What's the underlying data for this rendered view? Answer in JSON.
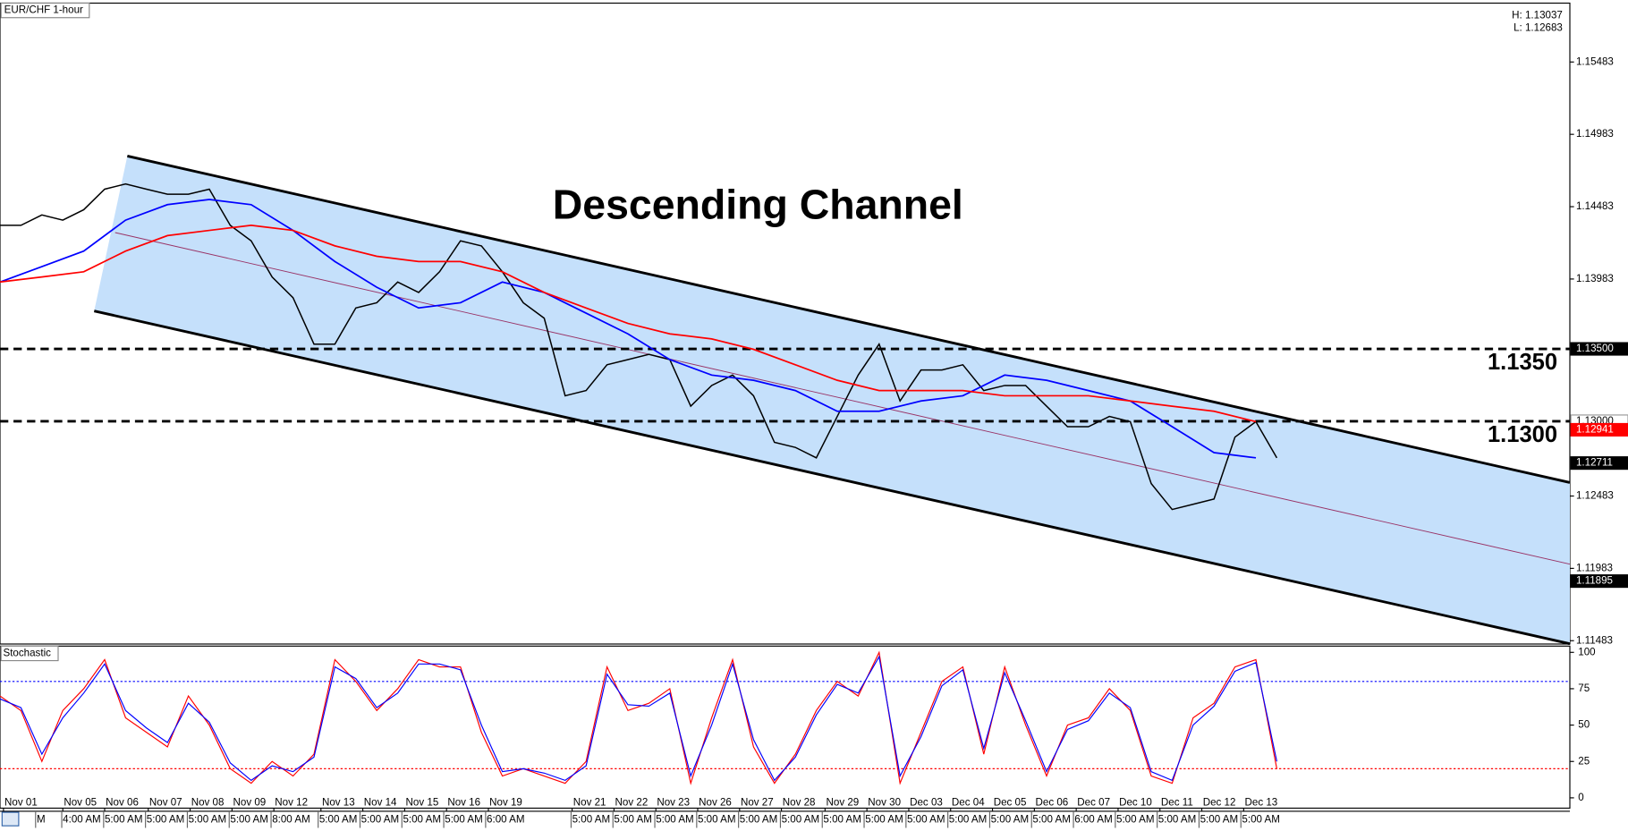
{
  "chart_data": {
    "type": "line",
    "title": "EUR/CHF 1-hour",
    "high_label": "H: 1.13037",
    "low_label": "L: 1.12683",
    "annotation": "Descending Channel",
    "xlim": [
      0,
      900
    ],
    "ylim": [
      1.1146,
      1.1589
    ],
    "yticks": [
      1.15483,
      1.14983,
      1.14483,
      1.13983,
      1.12483,
      1.11983,
      1.11483
    ],
    "xticks": [
      {
        "value": 2,
        "label": "Nov 01"
      },
      {
        "value": 36,
        "label": "Nov 05"
      },
      {
        "value": 60,
        "label": "Nov 06"
      },
      {
        "value": 85,
        "label": "Nov 07"
      },
      {
        "value": 109,
        "label": "Nov 08"
      },
      {
        "value": 133,
        "label": "Nov 09"
      },
      {
        "value": 157,
        "label": "Nov 12"
      },
      {
        "value": 184,
        "label": "Nov 13"
      },
      {
        "value": 208,
        "label": "Nov 14"
      },
      {
        "value": 232,
        "label": "Nov 15"
      },
      {
        "value": 256,
        "label": "Nov 16"
      },
      {
        "value": 280,
        "label": "Nov 19"
      },
      {
        "value": 328,
        "label": "Nov 21"
      },
      {
        "value": 352,
        "label": "Nov 22"
      },
      {
        "value": 376,
        "label": "Nov 23"
      },
      {
        "value": 400,
        "label": "Nov 26"
      },
      {
        "value": 424,
        "label": "Nov 27"
      },
      {
        "value": 448,
        "label": "Nov 28"
      },
      {
        "value": 473,
        "label": "Nov 29"
      },
      {
        "value": 497,
        "label": "Nov 30"
      },
      {
        "value": 521,
        "label": "Dec 03"
      },
      {
        "value": 545,
        "label": "Dec 04"
      },
      {
        "value": 569,
        "label": "Dec 05"
      },
      {
        "value": 593,
        "label": "Dec 06"
      },
      {
        "value": 617,
        "label": "Dec 07"
      },
      {
        "value": 641,
        "label": "Dec 10"
      },
      {
        "value": 665,
        "label": "Dec 11"
      },
      {
        "value": 689,
        "label": "Dec 12"
      },
      {
        "value": 713,
        "label": "Dec 13"
      }
    ],
    "time_ticks": [
      {
        "value": 21,
        "label": "M"
      },
      {
        "value": 36,
        "label": "4:00 AM"
      },
      {
        "value": 60,
        "label": "5:00 AM"
      },
      {
        "value": 84,
        "label": "5:00 AM"
      },
      {
        "value": 108,
        "label": "5:00 AM"
      },
      {
        "value": 132,
        "label": "5:00 AM"
      },
      {
        "value": 156,
        "label": "8:00 AM"
      },
      {
        "value": 183,
        "label": "5:00 AM"
      },
      {
        "value": 207,
        "label": "5:00 AM"
      },
      {
        "value": 231,
        "label": "5:00 AM"
      },
      {
        "value": 255,
        "label": "5:00 AM"
      },
      {
        "value": 279,
        "label": "6:00 AM"
      },
      {
        "value": 328,
        "label": "5:00 AM"
      },
      {
        "value": 352,
        "label": "5:00 AM"
      },
      {
        "value": 376,
        "label": "5:00 AM"
      },
      {
        "value": 400,
        "label": "5:00 AM"
      },
      {
        "value": 424,
        "label": "5:00 AM"
      },
      {
        "value": 448,
        "label": "5:00 AM"
      },
      {
        "value": 472,
        "label": "5:00 AM"
      },
      {
        "value": 496,
        "label": "5:00 AM"
      },
      {
        "value": 520,
        "label": "5:00 AM"
      },
      {
        "value": 544,
        "label": "5:00 AM"
      },
      {
        "value": 568,
        "label": "5:00 AM"
      },
      {
        "value": 592,
        "label": "5:00 AM"
      },
      {
        "value": 616,
        "label": "6:00 AM"
      },
      {
        "value": 640,
        "label": "5:00 AM"
      },
      {
        "value": 664,
        "label": "5:00 AM"
      },
      {
        "value": 688,
        "label": "5:00 AM"
      },
      {
        "value": 712,
        "label": "5:00 AM"
      }
    ],
    "series": [
      {
        "color": "#000000",
        "x": [
          0,
          12,
          24,
          36,
          48,
          60,
          72,
          84,
          96,
          108,
          120,
          132,
          144,
          156,
          168,
          180,
          192,
          204,
          216,
          228,
          240,
          252,
          264,
          276,
          288,
          300,
          312,
          324,
          336,
          348,
          360,
          372,
          384,
          396,
          408,
          420,
          432,
          444,
          456,
          468,
          480,
          492,
          504,
          516,
          528,
          540,
          552,
          564,
          576,
          588,
          600,
          612,
          624,
          636,
          648,
          660,
          672,
          684,
          696,
          708,
          720,
          732
        ],
        "values": [
          1.14354,
          1.14354,
          1.14426,
          1.1439,
          1.14462,
          1.14604,
          1.1464,
          1.14604,
          1.14569,
          1.14569,
          1.14604,
          1.14354,
          1.14247,
          1.13997,
          1.13854,
          1.13533,
          1.13533,
          1.13783,
          1.13819,
          1.13962,
          1.1389,
          1.14033,
          1.14247,
          1.14212,
          1.14033,
          1.13819,
          1.13712,
          1.13176,
          1.13212,
          1.1339,
          1.13426,
          1.13462,
          1.13426,
          1.13104,
          1.13247,
          1.13319,
          1.13176,
          1.12854,
          1.12819,
          1.12747,
          1.13033,
          1.13319,
          1.13533,
          1.1314,
          1.13354,
          1.13354,
          1.1339,
          1.13212,
          1.13247,
          1.13247,
          1.13104,
          1.12962,
          1.12962,
          1.13033,
          1.12997,
          1.12569,
          1.1239,
          1.12426,
          1.12462,
          1.1289,
          1.12997,
          1.12747
        ]
      },
      {
        "color": "#0000ff",
        "x": [
          0,
          24,
          48,
          72,
          96,
          120,
          144,
          168,
          192,
          216,
          240,
          264,
          288,
          312,
          336,
          360,
          384,
          408,
          432,
          456,
          480,
          504,
          528,
          552,
          576,
          600,
          624,
          648,
          672,
          696,
          720
        ],
        "values": [
          1.13962,
          1.14069,
          1.14176,
          1.1439,
          1.14497,
          1.14533,
          1.14497,
          1.14319,
          1.14104,
          1.13926,
          1.13783,
          1.13819,
          1.13962,
          1.1389,
          1.13747,
          1.13604,
          1.13426,
          1.13319,
          1.13283,
          1.13212,
          1.13069,
          1.13069,
          1.1314,
          1.13176,
          1.13319,
          1.13283,
          1.13212,
          1.1314,
          1.12962,
          1.12783,
          1.12747
        ]
      },
      {
        "color": "#ff0000",
        "x": [
          0,
          24,
          48,
          72,
          96,
          120,
          144,
          168,
          192,
          216,
          240,
          264,
          288,
          312,
          336,
          360,
          384,
          408,
          432,
          456,
          480,
          504,
          528,
          552,
          576,
          600,
          624,
          648,
          672,
          696,
          720
        ],
        "values": [
          1.13962,
          1.13997,
          1.14033,
          1.14176,
          1.14283,
          1.14319,
          1.14354,
          1.14319,
          1.14212,
          1.1414,
          1.14104,
          1.14104,
          1.14033,
          1.1389,
          1.13783,
          1.13676,
          1.13604,
          1.13569,
          1.13497,
          1.1339,
          1.13283,
          1.13212,
          1.13212,
          1.13212,
          1.13176,
          1.13176,
          1.13176,
          1.1314,
          1.13104,
          1.13069,
          1.12997
        ]
      }
    ],
    "channel": {
      "upper": {
        "x": [
          73,
          900
        ],
        "values": [
          1.14833,
          1.12576
        ]
      },
      "middle": {
        "x": [
          66,
          900
        ],
        "values": [
          1.14304,
          1.12012
        ]
      },
      "lower": {
        "x": [
          54,
          900
        ],
        "values": [
          1.13762,
          1.11462
        ]
      },
      "fill": "#c5e0fb"
    },
    "levels": [
      {
        "value": 1.135,
        "label": "1.1350"
      },
      {
        "value": 1.13,
        "label": "1.1300"
      }
    ],
    "price_tags": [
      {
        "value": 1.135,
        "label": "1.13500",
        "color": "#000000"
      },
      {
        "value": 1.13,
        "label": "1.13000",
        "color": "#ffffff"
      },
      {
        "value": 1.12941,
        "color": "#ff0000"
      },
      {
        "value": 1.12711,
        "color": "#000000"
      },
      {
        "value": 1.11895,
        "color": "#000000"
      }
    ],
    "stochastic": {
      "title": "Stochastic",
      "ylim": [
        -7.1,
        104.3
      ],
      "yticks": [
        0,
        25,
        50,
        75,
        100
      ],
      "levels": [
        {
          "value": 80,
          "color": "#0000ff"
        },
        {
          "value": 20,
          "color": "#ff0000"
        }
      ],
      "x": [
        0,
        12,
        24,
        36,
        48,
        60,
        72,
        84,
        96,
        108,
        120,
        132,
        144,
        156,
        168,
        180,
        192,
        204,
        216,
        228,
        240,
        252,
        264,
        276,
        288,
        300,
        312,
        324,
        336,
        348,
        360,
        372,
        384,
        396,
        408,
        420,
        432,
        444,
        456,
        468,
        480,
        492,
        504,
        516,
        528,
        540,
        552,
        564,
        576,
        588,
        600,
        612,
        624,
        636,
        648,
        660,
        672,
        684,
        696,
        708,
        720,
        732
      ],
      "series": [
        {
          "color": "#ff0000",
          "values": [
            70,
            60,
            25,
            60,
            75,
            95,
            55,
            45,
            35,
            70,
            50,
            20,
            10,
            25,
            15,
            30,
            95,
            80,
            60,
            75,
            95,
            90,
            90,
            45,
            15,
            20,
            15,
            10,
            25,
            90,
            60,
            65,
            75,
            10,
            55,
            95,
            35,
            10,
            30,
            60,
            80,
            70,
            100,
            10,
            45,
            80,
            90,
            30,
            90,
            50,
            15,
            50,
            55,
            75,
            60,
            15,
            10,
            55,
            65,
            90,
            95,
            20
          ]
        },
        {
          "color": "#0000ff",
          "values": [
            68,
            62,
            30,
            55,
            72,
            92,
            60,
            48,
            38,
            65,
            52,
            24,
            12,
            22,
            18,
            28,
            90,
            82,
            62,
            72,
            92,
            92,
            88,
            50,
            18,
            20,
            17,
            12,
            22,
            85,
            64,
            63,
            72,
            15,
            50,
            92,
            40,
            12,
            28,
            57,
            78,
            72,
            97,
            15,
            42,
            77,
            88,
            34,
            86,
            53,
            18,
            47,
            53,
            72,
            62,
            18,
            12,
            50,
            63,
            87,
            93,
            25
          ]
        }
      ]
    }
  }
}
